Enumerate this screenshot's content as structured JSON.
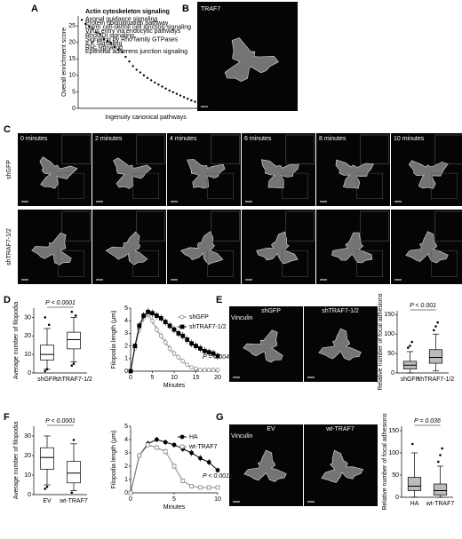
{
  "panel_letters": [
    "A",
    "B",
    "C",
    "D",
    "E",
    "F",
    "G"
  ],
  "panel_b": {
    "label": "TRAF7"
  },
  "panel_c": {
    "times": [
      "0 minutes",
      "2 minutes",
      "4 minutes",
      "6 minutes",
      "8 minutes",
      "10 minutes"
    ],
    "rows": [
      "shGFP",
      "shTRAF7-1/2"
    ]
  },
  "panel_e": {
    "stain": "Vinculin",
    "conditions": [
      "shGFP",
      "shTRAF7-1/2"
    ]
  },
  "panel_g": {
    "stain": "Vinculin",
    "conditions": [
      "EV",
      "wt-TRAF7"
    ]
  },
  "chart_data": [
    {
      "type": "scatter",
      "y_label": "Overall enrichment score",
      "x_label": "Ingenuity canonical pathways",
      "x": [
        1,
        2,
        3,
        4,
        5,
        6,
        7,
        8,
        9,
        10,
        11,
        12,
        13,
        14,
        15,
        16,
        17,
        18,
        19,
        20,
        21,
        22,
        23,
        24,
        25,
        26,
        27,
        28,
        29,
        30,
        31,
        32,
        33,
        34,
        35,
        36
      ],
      "values": [
        26.8,
        25.6,
        24.9,
        24.1,
        23.0,
        22.5,
        21.0,
        20.4,
        19.8,
        18.6,
        17.9,
        17.0,
        15.6,
        14.2,
        12.8,
        11.7,
        10.9,
        10.0,
        9.2,
        8.5,
        7.8,
        7.2,
        6.6,
        6.0,
        5.4,
        4.9,
        4.4,
        3.9,
        3.4,
        2.9,
        2.4,
        2.0,
        1.6,
        1.2,
        0.9,
        0.6
      ],
      "color": "#000000",
      "xlim": [
        0,
        37
      ],
      "ylim": [
        0,
        28
      ],
      "yticks": [
        0,
        5,
        10,
        15,
        20,
        25
      ],
      "annotations": [
        "Actin cytoskeleton signaling",
        "Axonal guidance signaling",
        "Protein ubiquitination pathway",
        "Germ cell-sertoli cell junction signaling",
        "Virus entry via endocytic pathways",
        "RhoGDI signaling",
        "Signaling by Rho family GTPases",
        "ILK Signaling",
        "Rac signaling",
        "Epithelial adherens junction signaling"
      ]
    },
    {
      "type": "box",
      "y_label": "Average number of filopodia",
      "ylim": [
        0,
        35
      ],
      "yticks": [
        0,
        10,
        20,
        30
      ],
      "annotation": "P < 0.0001",
      "series": [
        {
          "name": "shGFP",
          "color": "#ffffff",
          "min": 2,
          "q1": 7,
          "median": 10,
          "q3": 15,
          "max": 24,
          "outliers": [
            1,
            2,
            26,
            30
          ]
        },
        {
          "name": "shTRAF7-1/2",
          "color": "#ffffff",
          "min": 6,
          "q1": 13,
          "median": 18,
          "q3": 22,
          "max": 30,
          "outliers": [
            4,
            5,
            31,
            33
          ]
        }
      ]
    },
    {
      "type": "line",
      "y_label": "Filopodia length (μm)",
      "x_label": "Minutes",
      "xlim": [
        0,
        20
      ],
      "xticks": [
        0,
        5,
        10,
        15,
        20
      ],
      "ylim": [
        0,
        5
      ],
      "yticks": [
        0,
        1,
        2,
        3,
        4,
        5
      ],
      "annotation": "P = 0.004",
      "x": [
        0,
        1,
        2,
        3,
        4,
        5,
        6,
        7,
        8,
        9,
        10,
        11,
        12,
        13,
        14,
        15,
        16,
        17,
        18,
        19,
        20
      ],
      "series": [
        {
          "name": "shGFP",
          "color": "#888888",
          "marker": "circle",
          "marker_fill": "#ffffff",
          "values": [
            0,
            1.8,
            3.3,
            4.2,
            4.5,
            4.0,
            3.3,
            2.8,
            2.3,
            1.8,
            1.4,
            1.1,
            0.8,
            0.5,
            0.3,
            0.2,
            0.1,
            0.1,
            0.1,
            0.1,
            0.1
          ],
          "errors": [
            0,
            0.2,
            0.3,
            0.3,
            0.3,
            0.3,
            0.3,
            0.3,
            0.3,
            0.3,
            0.25,
            0.2,
            0.2,
            0.15,
            0.1,
            0.1,
            0.1,
            0.1,
            0.1,
            0.1,
            0.1
          ]
        },
        {
          "name": "shTRAF7-1/2",
          "color": "#000000",
          "marker": "square",
          "marker_fill": "#000000",
          "values": [
            0,
            2.0,
            3.6,
            4.4,
            4.7,
            4.6,
            4.4,
            4.2,
            3.9,
            3.6,
            3.3,
            3.0,
            2.8,
            2.5,
            2.2,
            2.0,
            1.8,
            1.6,
            1.5,
            1.4,
            1.2
          ],
          "errors": [
            0,
            0.2,
            0.3,
            0.3,
            0.3,
            0.3,
            0.3,
            0.3,
            0.3,
            0.3,
            0.3,
            0.3,
            0.3,
            0.3,
            0.3,
            0.3,
            0.3,
            0.3,
            0.3,
            0.3,
            0.3
          ]
        }
      ]
    },
    {
      "type": "box",
      "y_label": "Relative number of focal adhesions",
      "ylim": [
        0,
        160
      ],
      "yticks": [
        0,
        50,
        100,
        150
      ],
      "annotation": "P < 0.001",
      "series": [
        {
          "name": "shGFP",
          "color": "#bbbbbb",
          "min": 0,
          "q1": 10,
          "median": 20,
          "q3": 30,
          "max": 55,
          "outliers": [
            65,
            70,
            80
          ]
        },
        {
          "name": "shTRAF7-1/2",
          "color": "#bbbbbb",
          "min": 5,
          "q1": 25,
          "median": 40,
          "q3": 60,
          "max": 100,
          "outliers": [
            110,
            120,
            130
          ]
        }
      ]
    },
    {
      "type": "box",
      "y_label": "Average number of filopodia",
      "ylim": [
        0,
        35
      ],
      "yticks": [
        0,
        10,
        20,
        30
      ],
      "annotation": "P < 0.0001",
      "series": [
        {
          "name": "EV",
          "color": "#ffffff",
          "min": 5,
          "q1": 13,
          "median": 19,
          "q3": 24,
          "max": 30,
          "outliers": [
            3,
            4
          ]
        },
        {
          "name": "wt-TRAF7",
          "color": "#ffffff",
          "min": 2,
          "q1": 6,
          "median": 11,
          "q3": 17,
          "max": 26,
          "outliers": [
            1,
            28
          ]
        }
      ]
    },
    {
      "type": "line",
      "y_label": "Filopodia length (μm)",
      "x_label": "Minutes",
      "xlim": [
        0,
        10
      ],
      "xticks": [
        0,
        5,
        10
      ],
      "ylim": [
        0,
        5
      ],
      "yticks": [
        0,
        1,
        2,
        3,
        4,
        5
      ],
      "annotation": "P < 0.001",
      "x": [
        0,
        1,
        2,
        3,
        4,
        5,
        6,
        7,
        8,
        9,
        10
      ],
      "series": [
        {
          "name": "HA",
          "color": "#000000",
          "marker": "circle",
          "marker_fill": "#000000",
          "values": [
            0,
            2.8,
            3.7,
            4.0,
            3.8,
            3.6,
            3.3,
            3.0,
            2.6,
            2.3,
            1.7
          ],
          "errors": [
            0,
            0.15,
            0.2,
            0.2,
            0.2,
            0.2,
            0.25,
            0.25,
            0.25,
            0.25,
            0.2
          ]
        },
        {
          "name": "wt-TRAF7",
          "color": "#888888",
          "marker": "square",
          "marker_fill": "#ffffff",
          "values": [
            0,
            2.8,
            3.6,
            3.4,
            3.1,
            2.0,
            0.9,
            0.5,
            0.4,
            0.4,
            0.4
          ],
          "errors": [
            0,
            0.2,
            0.2,
            0.2,
            0.25,
            0.25,
            0.2,
            0.15,
            0.15,
            0.15,
            0.15
          ]
        }
      ]
    },
    {
      "type": "box",
      "y_label": "Relative number of focal adhesions",
      "ylim": [
        0,
        160
      ],
      "yticks": [
        0,
        50,
        100,
        150
      ],
      "annotation": "P = 0.036",
      "series": [
        {
          "name": "HA",
          "color": "#bbbbbb",
          "min": 0,
          "q1": 15,
          "median": 25,
          "q3": 45,
          "max": 100,
          "outliers": [
            120
          ]
        },
        {
          "name": "wt-TRAF7",
          "color": "#bbbbbb",
          "min": 0,
          "q1": 5,
          "median": 15,
          "q3": 30,
          "max": 70,
          "outliers": [
            80,
            95,
            110
          ]
        }
      ]
    }
  ]
}
